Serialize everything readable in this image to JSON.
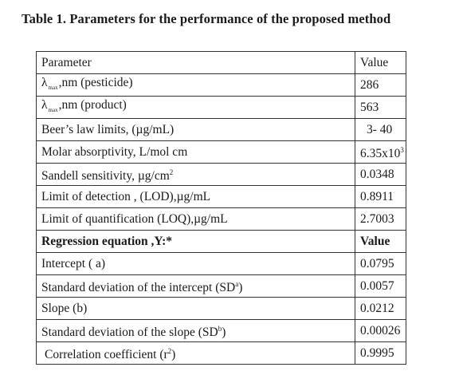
{
  "caption": "Table 1. Parameters for the performance of the proposed method",
  "table": {
    "header": {
      "parameter": "Parameter",
      "value": "Value"
    },
    "rows": [
      {
        "lambda": "λ",
        "sub": "max",
        "param": ",nm (pesticide)",
        "value": "286"
      },
      {
        "lambda": "λ",
        "sub": "max",
        "param": ",nm (product)",
        "value": "563"
      },
      {
        "param": "Beer’s law limits, (µg/mL)",
        "value": "3- 40"
      },
      {
        "param": "Molar absorptivity, L/mol cm",
        "value": "6.35x10",
        "value_sup": "3"
      },
      {
        "param": "Sandell sensitivity, µg/cm",
        "param_sup": "2",
        "value": "0.0348"
      },
      {
        "param": "Limit of detection , (LOD),µg/mL",
        "value": "0.8911"
      },
      {
        "param": "Limit of quantification (LOQ),µg/mL",
        "value": "2.7003"
      },
      {
        "param": "Regression equation ,Y:*",
        "value": "Value"
      },
      {
        "param": "Intercept ( a)",
        "value": "0.0795"
      },
      {
        "param": "Standard deviation of  the   intercept (SD",
        "param_sup": "a",
        "param_end": ")",
        "value": "0.0057"
      },
      {
        "param": "Slope (b)",
        "value": "0.0212"
      },
      {
        "param": "Standard deviation of the slope (SD",
        "param_sup": "b",
        "param_end": ")",
        "value": "0.00026"
      },
      {
        "param": "Correlation coefficient (r",
        "param_sup": "2",
        "param_end": ")",
        "value": "0.9995"
      }
    ]
  }
}
